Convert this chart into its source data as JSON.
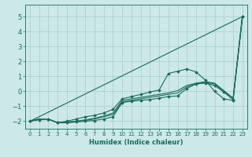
{
  "title": "",
  "xlabel": "Humidex (Indice chaleur)",
  "ylabel": "",
  "xlim": [
    -0.5,
    23.5
  ],
  "ylim": [
    -2.5,
    5.8
  ],
  "yticks": [
    -2,
    -1,
    0,
    1,
    2,
    3,
    4,
    5
  ],
  "xticks": [
    0,
    1,
    2,
    3,
    4,
    5,
    6,
    7,
    8,
    9,
    10,
    11,
    12,
    13,
    14,
    15,
    16,
    17,
    18,
    19,
    20,
    21,
    22,
    23
  ],
  "background_color": "#cce8e8",
  "grid_color": "#aacccc",
  "line_color": "#1a6b5c",
  "lines": [
    {
      "x": [
        0,
        1,
        2,
        3,
        4,
        5,
        6,
        7,
        8,
        9,
        10,
        11,
        12,
        13,
        14,
        15,
        16,
        17,
        18,
        19,
        20,
        21,
        22,
        23
      ],
      "y": [
        -2.0,
        -1.85,
        -1.85,
        -2.1,
        -2.1,
        -2.05,
        -2.0,
        -1.95,
        -1.85,
        -1.7,
        -0.75,
        -0.65,
        -0.6,
        -0.55,
        -0.45,
        -0.35,
        -0.3,
        0.2,
        0.5,
        0.55,
        0.4,
        -0.05,
        -0.55,
        5.0
      ],
      "marker": "D",
      "markersize": 1.8,
      "linewidth": 0.8
    },
    {
      "x": [
        0,
        1,
        2,
        3,
        4,
        5,
        6,
        7,
        8,
        9,
        10,
        11,
        12,
        13,
        14,
        15,
        16,
        17,
        18,
        19,
        20,
        21,
        22,
        23
      ],
      "y": [
        -2.0,
        -1.85,
        -1.85,
        -2.1,
        -2.1,
        -2.0,
        -1.95,
        -1.85,
        -1.7,
        -1.55,
        -0.7,
        -0.6,
        -0.5,
        -0.4,
        -0.3,
        -0.2,
        -0.1,
        0.3,
        0.5,
        0.6,
        0.5,
        0.0,
        -0.5,
        4.9
      ],
      "marker": null,
      "markersize": 0,
      "linewidth": 0.8
    },
    {
      "x": [
        0,
        1,
        2,
        3,
        4,
        5,
        6,
        7,
        8,
        9,
        10,
        11,
        12,
        13,
        14,
        15,
        16,
        17,
        18,
        19,
        20,
        21,
        22,
        23
      ],
      "y": [
        -2.0,
        -1.85,
        -1.85,
        -2.1,
        -2.05,
        -2.0,
        -1.9,
        -1.8,
        -1.65,
        -1.45,
        -0.6,
        -0.5,
        -0.4,
        -0.3,
        -0.2,
        -0.1,
        0.05,
        0.4,
        0.55,
        0.65,
        0.55,
        0.05,
        -0.45,
        5.0
      ],
      "marker": null,
      "markersize": 0,
      "linewidth": 0.8
    },
    {
      "x": [
        0,
        1,
        2,
        3,
        4,
        5,
        6,
        7,
        8,
        9,
        10,
        11,
        12,
        13,
        14,
        15,
        16,
        17,
        18,
        19,
        20,
        21,
        22,
        23
      ],
      "y": [
        -2.0,
        -1.9,
        -1.85,
        -2.1,
        -2.0,
        -1.85,
        -1.7,
        -1.6,
        -1.45,
        -1.2,
        -0.5,
        -0.35,
        -0.2,
        -0.05,
        0.1,
        1.2,
        1.35,
        1.5,
        1.3,
        0.75,
        0.0,
        -0.5,
        -0.6,
        5.0
      ],
      "marker": "D",
      "markersize": 1.8,
      "linewidth": 0.8
    },
    {
      "x": [
        0,
        23
      ],
      "y": [
        -2.0,
        5.0
      ],
      "marker": null,
      "markersize": 0,
      "linewidth": 0.8
    }
  ]
}
